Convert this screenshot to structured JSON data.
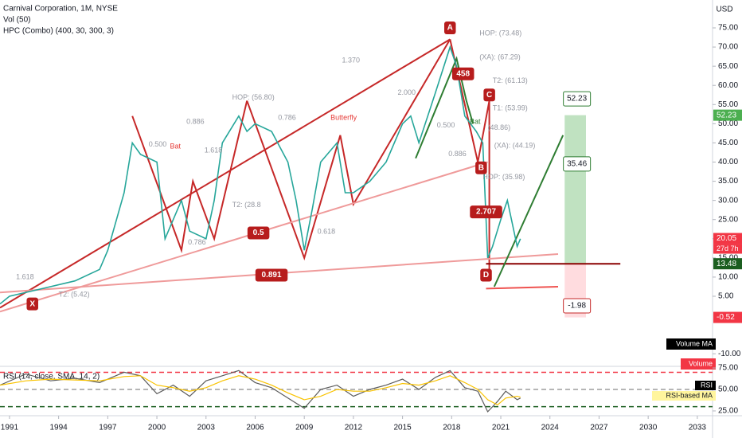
{
  "chart_data": [
    {
      "type": "line",
      "title": "Carnival Corporation, 1M, NYSE",
      "subtitles": [
        "Vol (50)",
        "HPC (Combo) (400, 30, 300, 3)"
      ],
      "currency": "USD",
      "x": [
        1990.42,
        1991,
        1993,
        1995,
        1996.5,
        1997,
        1998,
        1998.5,
        1999,
        2000,
        2000.5,
        2001,
        2001.5,
        2002,
        2003,
        2003.5,
        2004,
        2005,
        2005.5,
        2006,
        2007,
        2008,
        2008.5,
        2009,
        2009.5,
        2010,
        2011,
        2011.5,
        2012,
        2013,
        2014,
        2015,
        2015.5,
        2016,
        2017,
        2017.9,
        2018.3,
        2018.8,
        2019.5,
        2019.9,
        2020.2,
        2020.5,
        2021,
        2021.4,
        2022,
        2022.2
      ],
      "series": [
        {
          "name": "Carnival Corporation",
          "color": "#26a69a",
          "values": [
            3,
            5,
            7,
            9,
            12,
            17,
            32,
            45,
            42,
            40,
            20,
            25,
            30,
            22,
            20,
            30,
            45,
            52,
            48,
            50,
            48,
            40,
            30,
            17,
            28,
            40,
            45,
            32,
            32,
            35,
            40,
            50,
            52,
            45,
            58,
            70,
            65,
            52,
            48,
            45,
            15,
            18,
            25,
            30,
            18,
            20
          ]
        }
      ],
      "xlim": [
        1990.42,
        2033.93
      ],
      "xticks": [
        1991,
        1994,
        1997,
        2000,
        2003,
        2006,
        2009,
        2012,
        2015,
        2018,
        2021,
        2024,
        2027,
        2030,
        2033
      ],
      "ylim": [
        -13.28,
        82.27
      ],
      "yticks": [
        {
          "value": 75,
          "label": "75.00"
        },
        {
          "value": 70,
          "label": "70.00"
        },
        {
          "value": 65,
          "label": "65.00"
        },
        {
          "value": 60,
          "label": "60.00"
        },
        {
          "value": 55,
          "label": "55.00"
        },
        {
          "value": 50,
          "label": "50.00"
        },
        {
          "value": 45,
          "label": "45.00"
        },
        {
          "value": 40,
          "label": "40.00"
        },
        {
          "value": 35,
          "label": "35.00"
        },
        {
          "value": 30,
          "label": "30.00"
        },
        {
          "value": 25,
          "label": "25.00"
        },
        {
          "value": 20,
          "label": "20.00"
        },
        {
          "value": 15,
          "label": "15.00"
        },
        {
          "value": 10,
          "label": "10.00"
        },
        {
          "value": 5,
          "label": "5.00"
        },
        {
          "value": -10,
          "label": "-10.00"
        }
      ],
      "drawings": [
        {
          "color": "#c62828",
          "x": [
            1990.42,
            2017.9
          ],
          "y": [
            2,
            72
          ]
        },
        {
          "color": "#c62828",
          "x": [
            1998.5,
            2001.5,
            2002.2,
            2003.5,
            2005.5
          ],
          "y": [
            52,
            17,
            35,
            20,
            56
          ]
        },
        {
          "color": "#c62828",
          "x": [
            2005.5,
            2009,
            2011.2,
            2012,
            2017.9
          ],
          "y": [
            56,
            15,
            47,
            29,
            72
          ]
        },
        {
          "color": "#c62828",
          "x": [
            2017.9,
            2019.6,
            2020.3,
            2020.3
          ],
          "y": [
            72,
            40,
            56,
            12
          ]
        },
        {
          "color": "#2e7d32",
          "x": [
            2015.8,
            2018.3,
            2018.9,
            2019.3
          ],
          "y": [
            41,
            67,
            56,
            50
          ]
        },
        {
          "color": "#ef9a9a",
          "x": [
            1990.42,
            2020.2
          ],
          "y": [
            1,
            40
          ]
        },
        {
          "color": "#ef9a9a",
          "x": [
            1990.42,
            2024.5
          ],
          "y": [
            6,
            16
          ]
        },
        {
          "color": "#8b0000",
          "x": [
            2020.1,
            2028.3
          ],
          "y": [
            13.48,
            13.48
          ]
        },
        {
          "color": "#ef5350",
          "x": [
            2020.1,
            2024.5
          ],
          "y": [
            7,
            7.5
          ]
        },
        {
          "color": "#2e7d32",
          "x": [
            2020.6,
            2024.8
          ],
          "y": [
            7.5,
            47
          ]
        }
      ],
      "zones": [
        {
          "color": "#a5d6a7",
          "x": [
            2024.9,
            2026.2
          ],
          "y": [
            13.48,
            52.23
          ]
        },
        {
          "color": "#ffcdd2",
          "x": [
            2024.9,
            2026.2
          ],
          "y": [
            -0.52,
            13.48
          ]
        }
      ],
      "annotations": [
        {
          "text": "A",
          "x": 2017.9,
          "y": 75,
          "style": "box"
        },
        {
          "text": "X",
          "x": 1992.4,
          "y": 3,
          "style": "box"
        },
        {
          "text": "B",
          "x": 2019.8,
          "y": 38.5,
          "style": "box"
        },
        {
          "text": "C",
          "x": 2020.3,
          "y": 57.5,
          "style": "box"
        },
        {
          "text": "D",
          "x": 2020.1,
          "y": 10.5,
          "style": "box"
        },
        {
          "text": "458",
          "x": 2018.7,
          "y": 63,
          "style": "box"
        },
        {
          "text": "0.5",
          "x": 2006.2,
          "y": 21.5,
          "style": "box"
        },
        {
          "text": "0.891",
          "x": 2007,
          "y": 10.5,
          "style": "box"
        },
        {
          "text": "2.707",
          "x": 2020.1,
          "y": 27,
          "style": "box"
        },
        {
          "text": "HOP: (73.48)",
          "x": 2019.7,
          "y": 73.48,
          "style": "plain"
        },
        {
          "text": "(XA): (67.29)",
          "x": 2019.7,
          "y": 67.29,
          "style": "plain"
        },
        {
          "text": "T2: (61.13)",
          "x": 2020.5,
          "y": 61.13,
          "style": "plain"
        },
        {
          "text": "T1: (53.99)",
          "x": 2020.5,
          "y": 53.99,
          "style": "plain"
        },
        {
          "text": "(48.86)",
          "x": 2020.2,
          "y": 48.86,
          "style": "plain"
        },
        {
          "text": "(XA): (44.19)",
          "x": 2020.6,
          "y": 44.19,
          "style": "plain"
        },
        {
          "text": "HOP: (35.98)",
          "x": 2019.9,
          "y": 35.98,
          "style": "plain"
        },
        {
          "text": "HOP: (56.80)",
          "x": 2004.6,
          "y": 56.8,
          "style": "plain"
        },
        {
          "text": "T2: (28.8",
          "x": 2004.6,
          "y": 28.8,
          "style": "plain"
        },
        {
          "text": "Bat",
          "x": 2000.8,
          "y": 44,
          "style": "red"
        },
        {
          "text": "Butterfly",
          "x": 2010.6,
          "y": 51.5,
          "style": "red"
        },
        {
          "text": "Bat",
          "x": 2019.1,
          "y": 50.5,
          "style": "green"
        },
        {
          "text": "0.886",
          "x": 2001.8,
          "y": 50.5,
          "style": "plain"
        },
        {
          "text": "0.500",
          "x": 1999.5,
          "y": 44.5,
          "style": "plain"
        },
        {
          "text": "1.618",
          "x": 2002.9,
          "y": 43,
          "style": "plain"
        },
        {
          "text": "0.786",
          "x": 2001.9,
          "y": 19,
          "style": "plain"
        },
        {
          "text": "0.786",
          "x": 2007.4,
          "y": 51.5,
          "style": "plain"
        },
        {
          "text": "1.370",
          "x": 2011.3,
          "y": 66.5,
          "style": "plain"
        },
        {
          "text": "2.000",
          "x": 2014.7,
          "y": 58,
          "style": "plain"
        },
        {
          "text": "0.618",
          "x": 2009.8,
          "y": 21.8,
          "style": "plain"
        },
        {
          "text": "0.886",
          "x": 2017.8,
          "y": 42,
          "style": "plain"
        },
        {
          "text": "0.500",
          "x": 2017.1,
          "y": 49.5,
          "style": "plain"
        },
        {
          "text": "1.618",
          "x": 1991.4,
          "y": 10,
          "style": "plain"
        },
        {
          "text": "T2: (5.42)",
          "x": 1994,
          "y": 5.42,
          "style": "plain"
        }
      ],
      "callouts": [
        {
          "text": "52.23",
          "x": 2025.6,
          "y": 56.5,
          "color": "#2e7d32"
        },
        {
          "text": "35.46",
          "x": 2025.6,
          "y": 39.5,
          "color": "#2e7d32"
        },
        {
          "text": "-1.98",
          "x": 2025.6,
          "y": 2.5,
          "color": "#c62828"
        }
      ],
      "price_labels": [
        {
          "text": "52.23",
          "value": 52.23,
          "color": "#4caf50"
        },
        {
          "text": "20.05",
          "value": 20.05,
          "color": "#f23645"
        },
        {
          "text": "13.48",
          "value": 13.48,
          "color": "#1b5e20"
        },
        {
          "text": "-0.52",
          "value": -0.52,
          "color": "#f23645"
        }
      ],
      "countdown": "27d 7h",
      "pane_labels": [
        "Volume MA",
        "Volume"
      ]
    },
    {
      "type": "line",
      "title": "RSI (14, close, SMA, 14, 2)",
      "x": [
        1990.42,
        1992,
        1993.5,
        1995,
        1996.5,
        1998,
        1999,
        2000,
        2001,
        2002,
        2003,
        2004,
        2005,
        2006,
        2007,
        2008,
        2009,
        2010,
        2011,
        2012,
        2013,
        2014,
        2015,
        2016,
        2017,
        2017.9,
        2018.8,
        2019.6,
        2020.2,
        2020.8,
        2021.3,
        2022,
        2022.2
      ],
      "series": [
        {
          "name": "RSI",
          "color": "#5b5b5b",
          "values": [
            55,
            68,
            60,
            63,
            58,
            70,
            66,
            45,
            55,
            42,
            60,
            66,
            72,
            58,
            52,
            40,
            28,
            50,
            55,
            42,
            50,
            55,
            62,
            50,
            64,
            72,
            52,
            48,
            24,
            36,
            48,
            38,
            40
          ]
        },
        {
          "name": "RSI-based MA",
          "color": "#f9c300",
          "values": [
            55,
            60,
            62,
            61,
            60,
            65,
            66,
            55,
            52,
            48,
            52,
            60,
            66,
            62,
            55,
            46,
            38,
            42,
            50,
            48,
            48,
            52,
            57,
            55,
            60,
            66,
            58,
            50,
            38,
            32,
            40,
            42,
            41
          ]
        }
      ],
      "xlim": [
        1990.42,
        2033.93
      ],
      "ylim": [
        19.4,
        76.9
      ],
      "yticks": [
        {
          "value": 75,
          "label": "75.00"
        },
        {
          "value": 50,
          "label": "50.00"
        },
        {
          "value": 25,
          "label": "25.00"
        }
      ],
      "levels": [
        {
          "value": 70,
          "color": "#f23645"
        },
        {
          "value": 50,
          "color": "#9e9e9e"
        },
        {
          "value": 30,
          "color": "#1b5e20"
        }
      ]
    }
  ]
}
